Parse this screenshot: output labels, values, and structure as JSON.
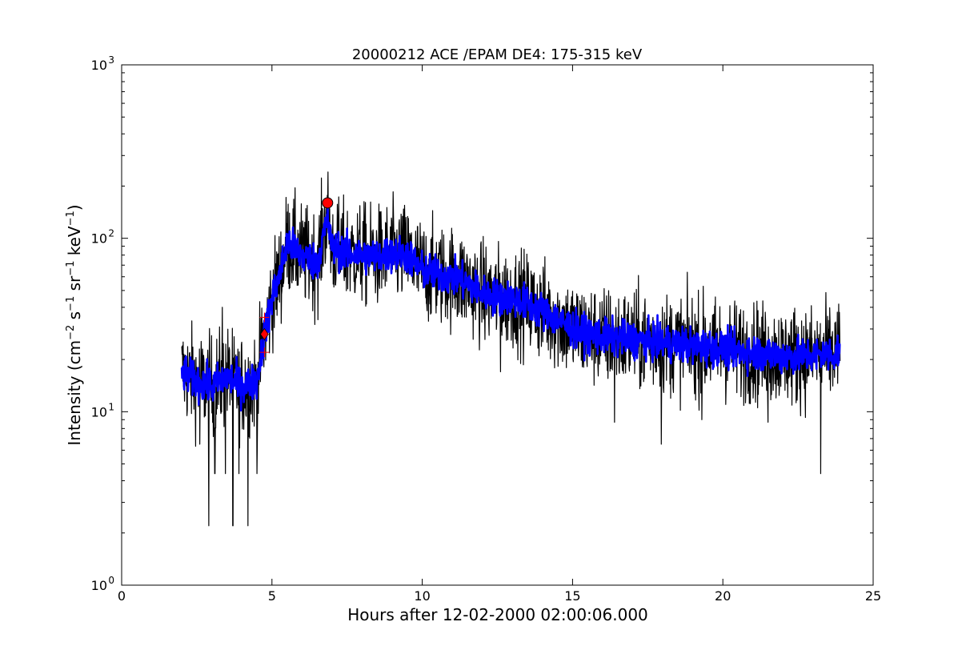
{
  "chart_data": {
    "type": "line",
    "title": "20000212 ACE /EPAM DE4: 175-315 keV",
    "xlabel": "Hours after 12-02-2000 02:00:06.000",
    "ylabel": {
      "prefix": "Intensity (cm",
      "e1": "−2",
      "p2": " s",
      "e2": "−1",
      "p3": " sr",
      "e3": "−1",
      "p4": " keV",
      "e4": "−1",
      "suffix": ")"
    },
    "xlim": [
      0,
      25
    ],
    "ylim": [
      1,
      1000
    ],
    "yscale": "log",
    "grid": false,
    "x_ticks": [
      "0",
      "5",
      "10",
      "15",
      "20",
      "25"
    ],
    "x_tick_values": [
      0,
      5,
      10,
      15,
      20,
      25
    ],
    "y_ticks": [
      {
        "value": 1,
        "base": "10",
        "exp": "0"
      },
      {
        "value": 10,
        "base": "10",
        "exp": "1"
      },
      {
        "value": 100,
        "base": "10",
        "exp": "2"
      },
      {
        "value": 1000,
        "base": "10",
        "exp": "3"
      }
    ],
    "series": [
      {
        "style": "raw",
        "color": "#000000",
        "x": [
          2.0,
          2.5,
          3.0,
          3.5,
          4.0,
          4.5,
          4.7,
          5.0,
          5.3,
          5.5,
          6.0,
          6.5,
          6.85,
          7.0,
          7.5,
          8.0,
          8.5,
          9.0,
          9.5,
          10.0,
          10.5,
          11.0,
          11.5,
          12.0,
          12.5,
          13.0,
          13.5,
          14.0,
          14.5,
          15.0,
          15.5,
          16.0,
          17.0,
          18.0,
          19.0,
          20.0,
          21.0,
          22.0,
          23.0,
          23.9
        ],
        "y": [
          17,
          15,
          14,
          16,
          14,
          15,
          25,
          45,
          65,
          95,
          80,
          72,
          140,
          88,
          82,
          80,
          78,
          82,
          80,
          65,
          62,
          60,
          55,
          48,
          46,
          45,
          42,
          38,
          34,
          30,
          28,
          27,
          26,
          25,
          24,
          23,
          22,
          21,
          21,
          22
        ],
        "noise": 0.33,
        "spikes": [
          {
            "x": 2.9,
            "y": 2.2
          },
          {
            "x": 3.7,
            "y": 2.2
          },
          {
            "x": 4.2,
            "y": 2.2
          },
          {
            "x": 3.1,
            "y": 4.4
          },
          {
            "x": 3.45,
            "y": 4.4
          },
          {
            "x": 3.9,
            "y": 4.4
          },
          {
            "x": 4.5,
            "y": 4.4
          },
          {
            "x": 2.6,
            "y": 6.5
          },
          {
            "x": 3.35,
            "y": 40
          },
          {
            "x": 12.6,
            "y": 17
          },
          {
            "x": 16.4,
            "y": 8.7
          },
          {
            "x": 17.95,
            "y": 6.5
          },
          {
            "x": 23.25,
            "y": 4.4
          },
          {
            "x": 19.3,
            "y": 9
          },
          {
            "x": 21.5,
            "y": 8.7
          },
          {
            "x": 6.85,
            "y": 160
          }
        ]
      },
      {
        "style": "smoothed",
        "color": "#0000ff",
        "x": [
          2.0,
          2.5,
          3.0,
          3.5,
          4.0,
          4.5,
          4.7,
          5.0,
          5.3,
          5.5,
          6.0,
          6.5,
          6.85,
          7.0,
          7.5,
          8.0,
          8.5,
          9.0,
          9.5,
          10.0,
          10.5,
          11.0,
          11.5,
          12.0,
          12.5,
          13.0,
          13.5,
          14.0,
          14.5,
          15.0,
          15.5,
          16.0,
          17.0,
          18.0,
          19.0,
          20.0,
          21.0,
          22.0,
          23.0,
          23.9
        ],
        "y": [
          17,
          15,
          14,
          16,
          14,
          15,
          25,
          45,
          65,
          95,
          80,
          72,
          130,
          88,
          82,
          80,
          78,
          82,
          80,
          65,
          62,
          60,
          55,
          48,
          46,
          45,
          42,
          38,
          34,
          30,
          28,
          27,
          26,
          25,
          24,
          23,
          22,
          21,
          21,
          22
        ],
        "noise": 0.12
      }
    ],
    "markers": [
      {
        "shape": "circle",
        "color": "#ff0000",
        "x": 6.85,
        "y": 160
      },
      {
        "shape": "diamond",
        "color": "#ff0000",
        "x": 4.75,
        "y": 28
      },
      {
        "shape": "plus",
        "color": "#ff0000",
        "x": 4.75,
        "y": 35
      },
      {
        "shape": "plus",
        "color": "#ff0000",
        "x": 4.75,
        "y": 22
      }
    ]
  }
}
